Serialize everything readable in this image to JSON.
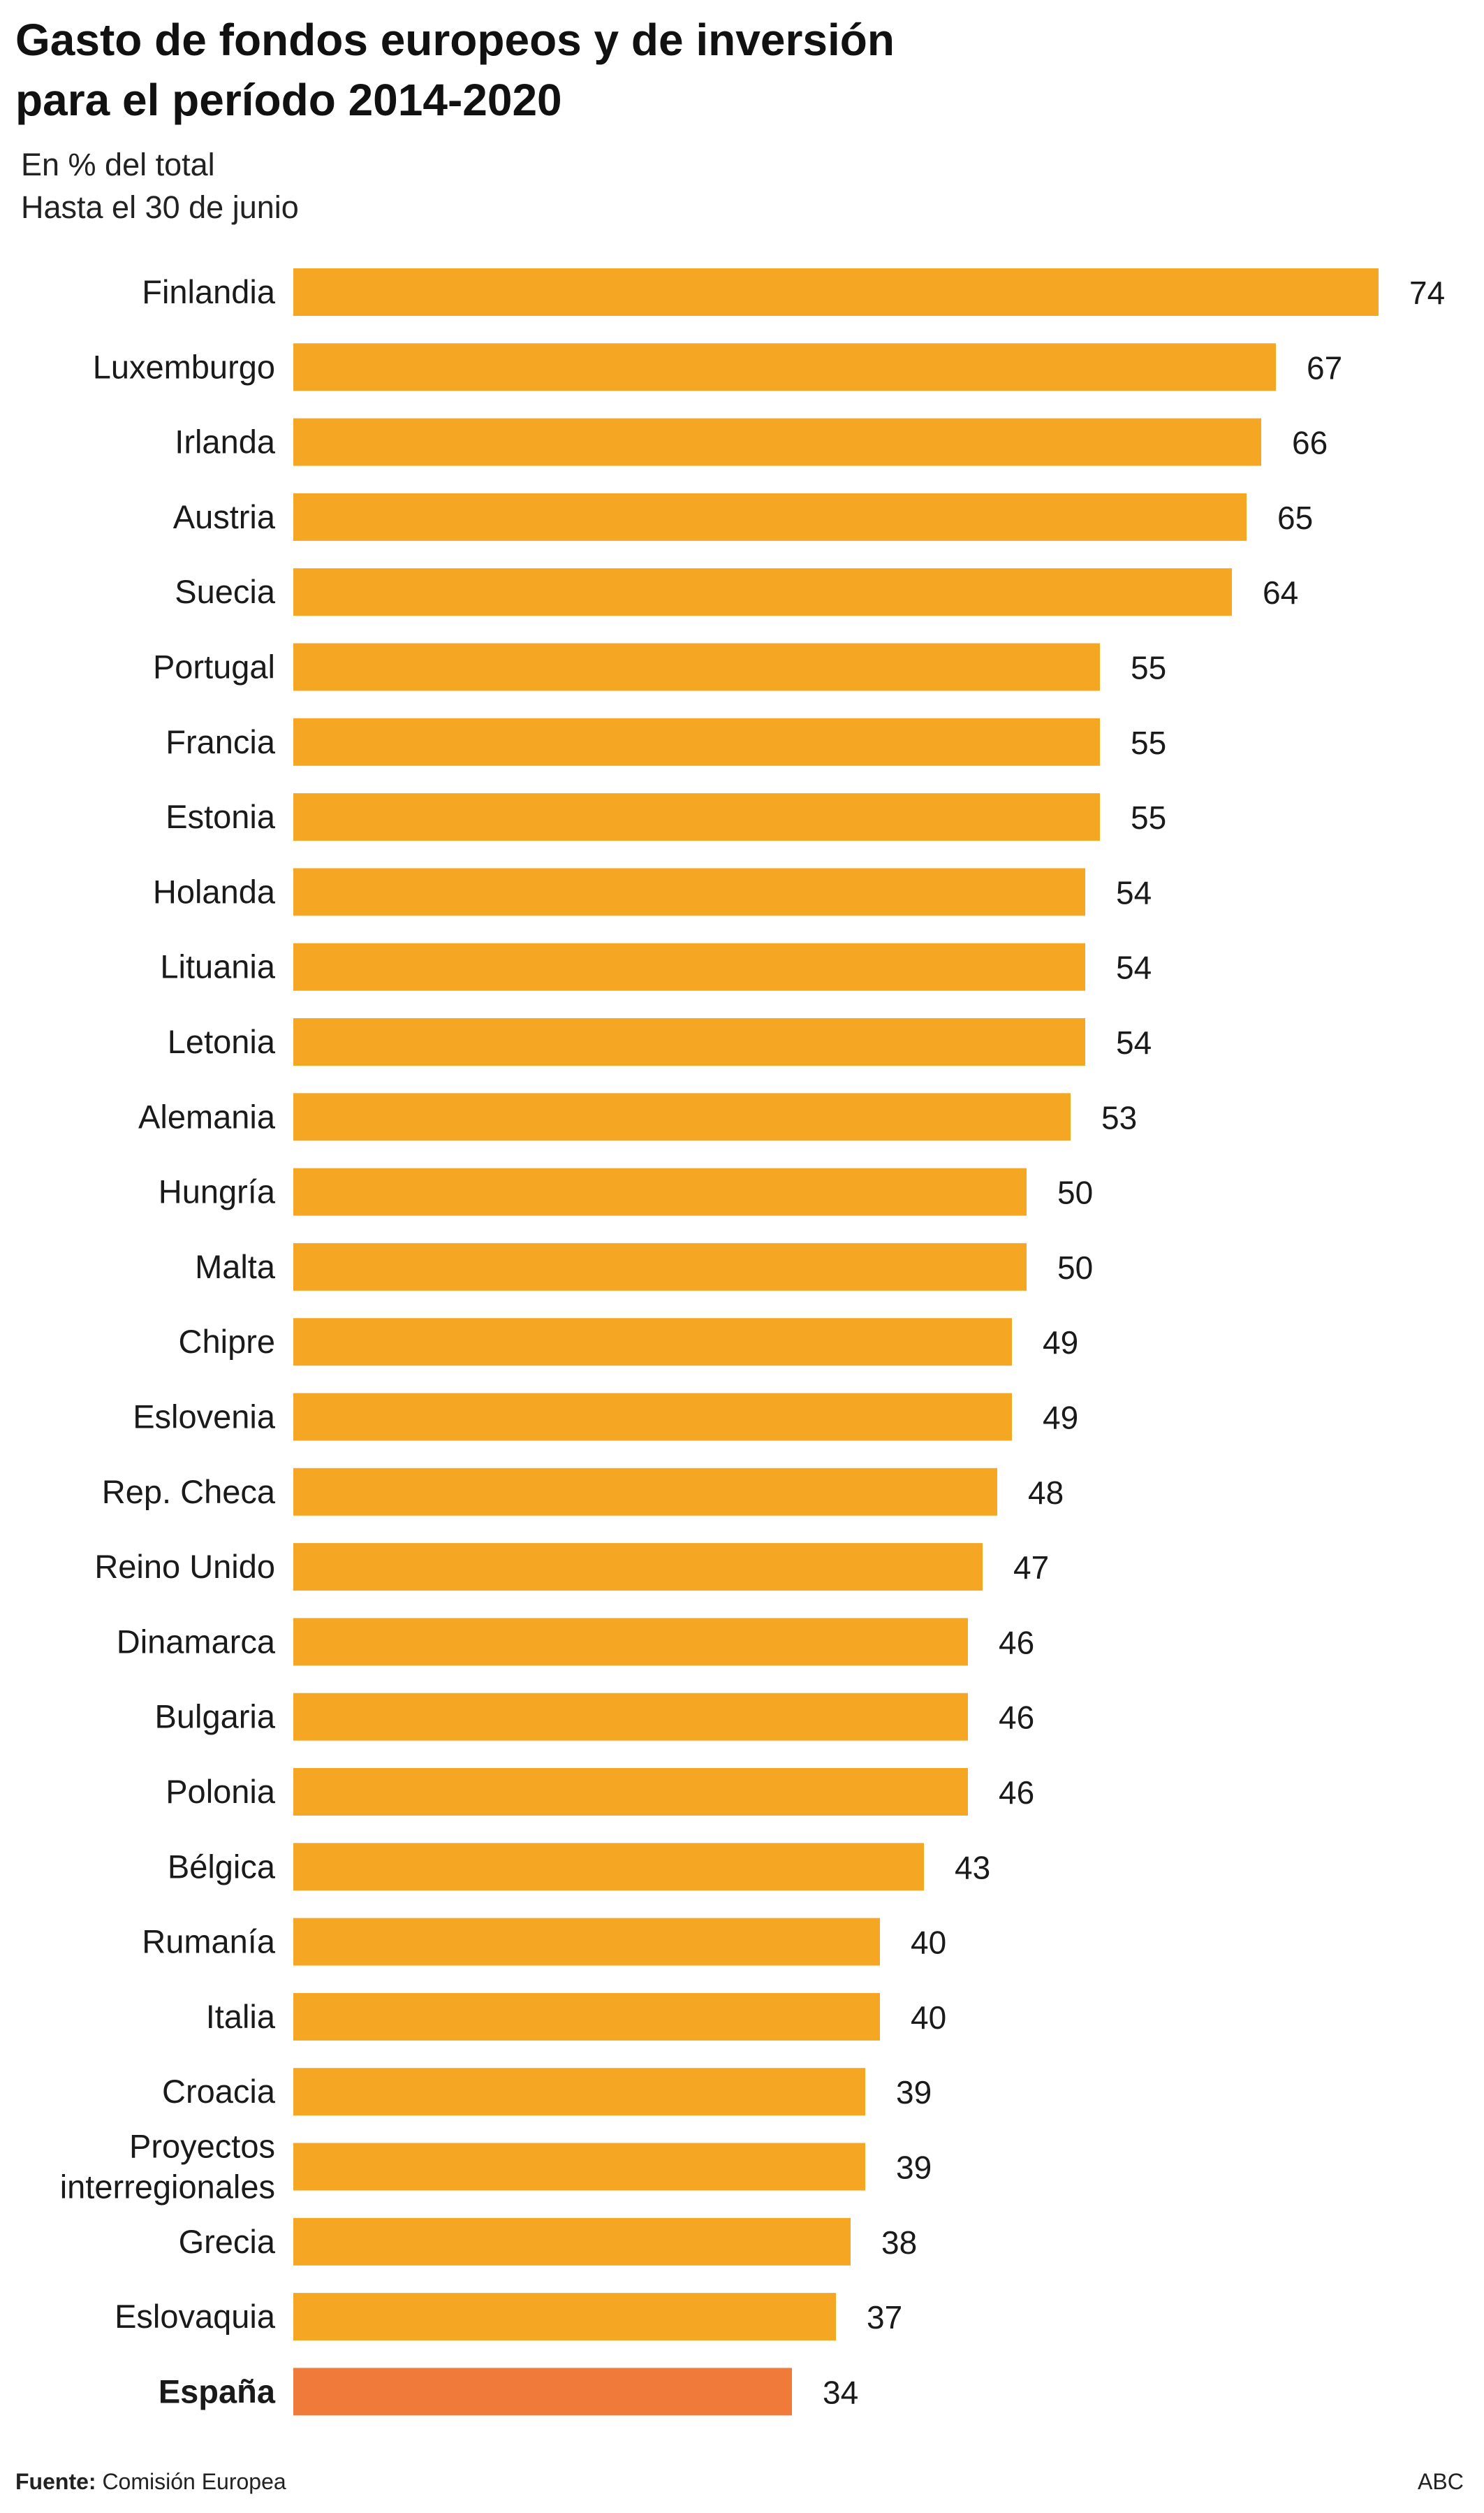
{
  "header": {
    "title_line1": "Gasto de fondos europeos y de inversión",
    "title_line2": "para el período 2014-2020",
    "subtitle_line1": "En % del total",
    "subtitle_line2": "Hasta el 30 de junio"
  },
  "footer": {
    "source_label": "Fuente:",
    "source_value": "Comisión Europea",
    "brand": "ABC"
  },
  "colors": {
    "bar": "#F5A623",
    "highlight": "#EF7A3A"
  },
  "chart_data": {
    "type": "bar",
    "orientation": "horizontal",
    "title": "Gasto de fondos europeos y de inversión para el período 2014-2020",
    "subtitle": "En % del total — Hasta el 30 de junio",
    "xlabel": "",
    "ylabel": "",
    "xlim": [
      0,
      74
    ],
    "grid": false,
    "highlight": "España",
    "categories": [
      "Finlandia",
      "Luxemburgo",
      "Irlanda",
      "Austria",
      "Suecia",
      "Portugal",
      "Francia",
      "Estonia",
      "Holanda",
      "Lituania",
      "Letonia",
      "Alemania",
      "Hungría",
      "Malta",
      "Chipre",
      "Eslovenia",
      "Rep. Checa",
      "Reino Unido",
      "Dinamarca",
      "Bulgaria",
      "Polonia",
      "Bélgica",
      "Rumanía",
      "Italia",
      "Croacia",
      "Proyectos interregionales",
      "Grecia",
      "Eslovaquia",
      "España"
    ],
    "category_lines": [
      [
        "Finlandia"
      ],
      [
        "Luxemburgo"
      ],
      [
        "Irlanda"
      ],
      [
        "Austria"
      ],
      [
        "Suecia"
      ],
      [
        "Portugal"
      ],
      [
        "Francia"
      ],
      [
        "Estonia"
      ],
      [
        "Holanda"
      ],
      [
        "Lituania"
      ],
      [
        "Letonia"
      ],
      [
        "Alemania"
      ],
      [
        "Hungría"
      ],
      [
        "Malta"
      ],
      [
        "Chipre"
      ],
      [
        "Eslovenia"
      ],
      [
        "Rep. Checa"
      ],
      [
        "Reino Unido"
      ],
      [
        "Dinamarca"
      ],
      [
        "Bulgaria"
      ],
      [
        "Polonia"
      ],
      [
        "Bélgica"
      ],
      [
        "Rumanía"
      ],
      [
        "Italia"
      ],
      [
        "Croacia"
      ],
      [
        "Proyectos",
        "interregionales"
      ],
      [
        "Grecia"
      ],
      [
        "Eslovaquia"
      ],
      [
        "España"
      ]
    ],
    "values": [
      74,
      67,
      66,
      65,
      64,
      55,
      55,
      55,
      54,
      54,
      54,
      53,
      50,
      50,
      49,
      49,
      48,
      47,
      46,
      46,
      46,
      43,
      40,
      40,
      39,
      39,
      38,
      37,
      34
    ]
  }
}
